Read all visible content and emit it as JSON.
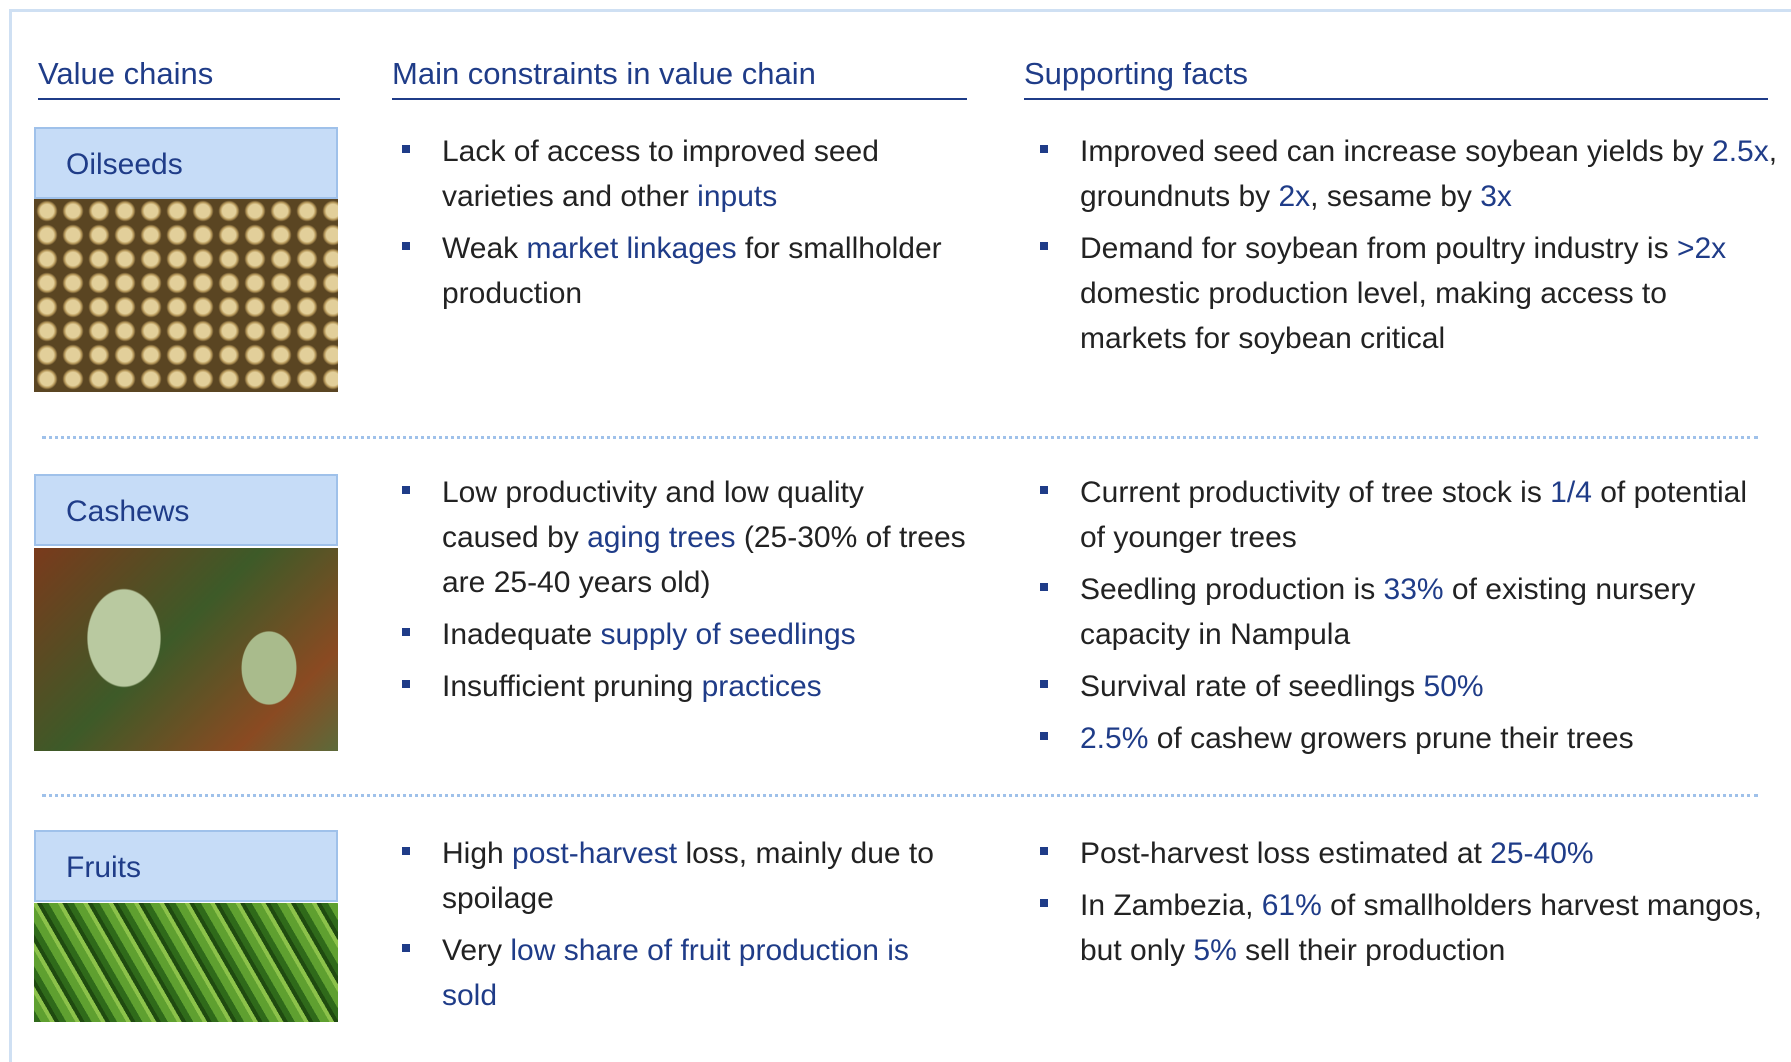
{
  "header": {
    "columns": [
      "Value chains",
      "Main constraints in value chain",
      "Supporting facts"
    ]
  },
  "rows": [
    {
      "name": "Oilseeds",
      "constraints": [
        [
          "Lack of access to improved seed varieties and other ",
          {
            "text": "inputs",
            "em": true
          }
        ],
        [
          "Weak ",
          {
            "text": "market linkages",
            "em": true
          },
          " for smallholder production"
        ]
      ],
      "facts": [
        [
          "Improved seed can increase soybean yields by ",
          {
            "text": "2.5x",
            "em": true
          },
          ", groundnuts by ",
          {
            "text": "2x",
            "em": true
          },
          ", sesame by ",
          {
            "text": "3x",
            "em": true
          }
        ],
        [
          "Demand for soybean from poultry industry is ",
          {
            "text": ">2x",
            "em": true
          },
          " domestic production level, making access to markets for soybean critical"
        ]
      ]
    },
    {
      "name": "Cashews",
      "constraints": [
        [
          "Low productivity and low quality caused by ",
          {
            "text": "aging trees",
            "em": true
          },
          " (25-30% of trees are 25-40 years old)"
        ],
        [
          "Inadequate ",
          {
            "text": "supply of seedlings",
            "em": true
          }
        ],
        [
          "Insufficient pruning ",
          {
            "text": "practices",
            "em": true
          }
        ]
      ],
      "facts": [
        [
          "Current productivity of tree stock is ",
          {
            "text": "1/4",
            "em": true
          },
          " of potential of younger trees"
        ],
        [
          "Seedling production is ",
          {
            "text": "33%",
            "em": true
          },
          " of existing nursery capacity in Nampula"
        ],
        [
          "Survival rate of seedlings ",
          {
            "text": "50%",
            "em": true
          }
        ],
        [
          {
            "text": "2.5%",
            "em": true
          },
          " of cashew growers prune their trees"
        ]
      ]
    },
    {
      "name": "Fruits",
      "constraints": [
        [
          "High ",
          {
            "text": "post-harvest",
            "em": true
          },
          " loss, mainly due to spoilage"
        ],
        [
          "Very ",
          {
            "text": "low share of fruit production is sold",
            "em": true
          }
        ]
      ],
      "facts": [
        [
          "Post-harvest loss estimated at ",
          {
            "text": "25-40%",
            "em": true
          }
        ],
        [
          "In Zambezia, ",
          {
            "text": "61%",
            "em": true
          },
          " of smallholders harvest mangos, but only ",
          {
            "text": "5%",
            "em": true
          },
          " sell their production"
        ]
      ]
    }
  ]
}
